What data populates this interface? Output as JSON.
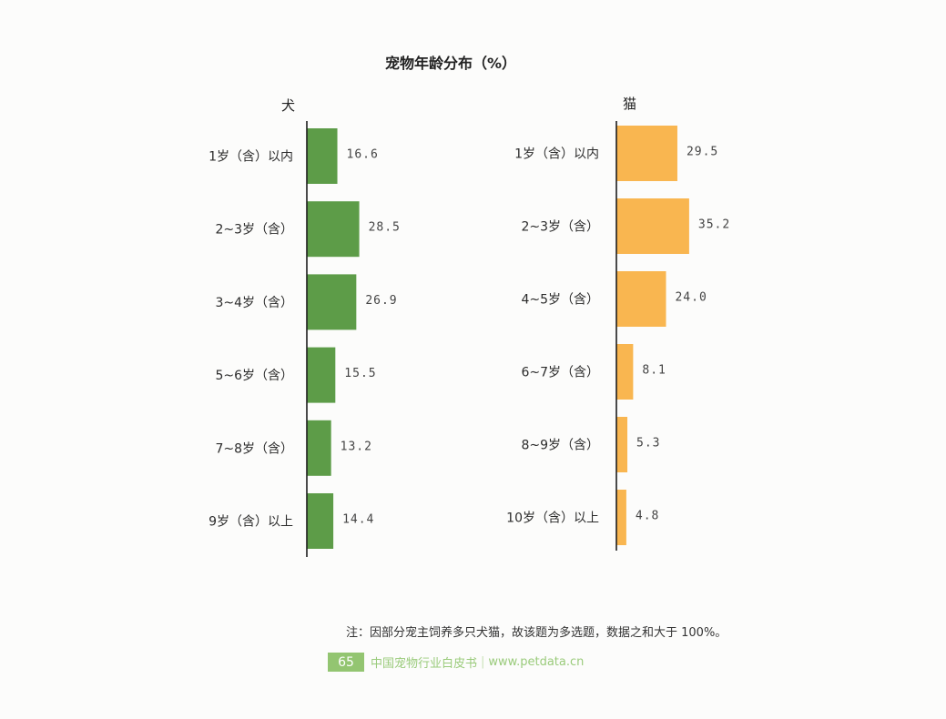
{
  "figure": {
    "title": "宠物年龄分布（%）"
  },
  "chart_data": [
    {
      "type": "bar",
      "orientation": "horizontal",
      "panel_label": "犬",
      "color": "#5d9c48",
      "grid": false,
      "categories": [
        "1岁（含）以内",
        "2~3岁（含）",
        "3~4岁（含）",
        "5~6岁（含）",
        "7~8岁（含）",
        "9岁（含）以上"
      ],
      "values": [
        16.6,
        28.5,
        26.9,
        15.5,
        13.2,
        14.4
      ]
    },
    {
      "type": "bar",
      "orientation": "horizontal",
      "panel_label": "猫",
      "color": "#f9b650",
      "grid": false,
      "categories": [
        "1岁（含）以内",
        "2~3岁（含）",
        "4~5岁（含）",
        "6~7岁（含）",
        "8~9岁（含）",
        "10岁（含）以上"
      ],
      "values": [
        29.5,
        35.2,
        24.0,
        8.1,
        5.3,
        4.8
      ]
    }
  ],
  "note": "注：因部分宠主饲养多只犬猫，故该题为多选题，数据之和大于 100%。",
  "footer": {
    "page_number": "65",
    "publication": "中国宠物行业白皮书",
    "separator": "|",
    "url": "www.petdata.cn",
    "accent_color": "#93c571"
  }
}
